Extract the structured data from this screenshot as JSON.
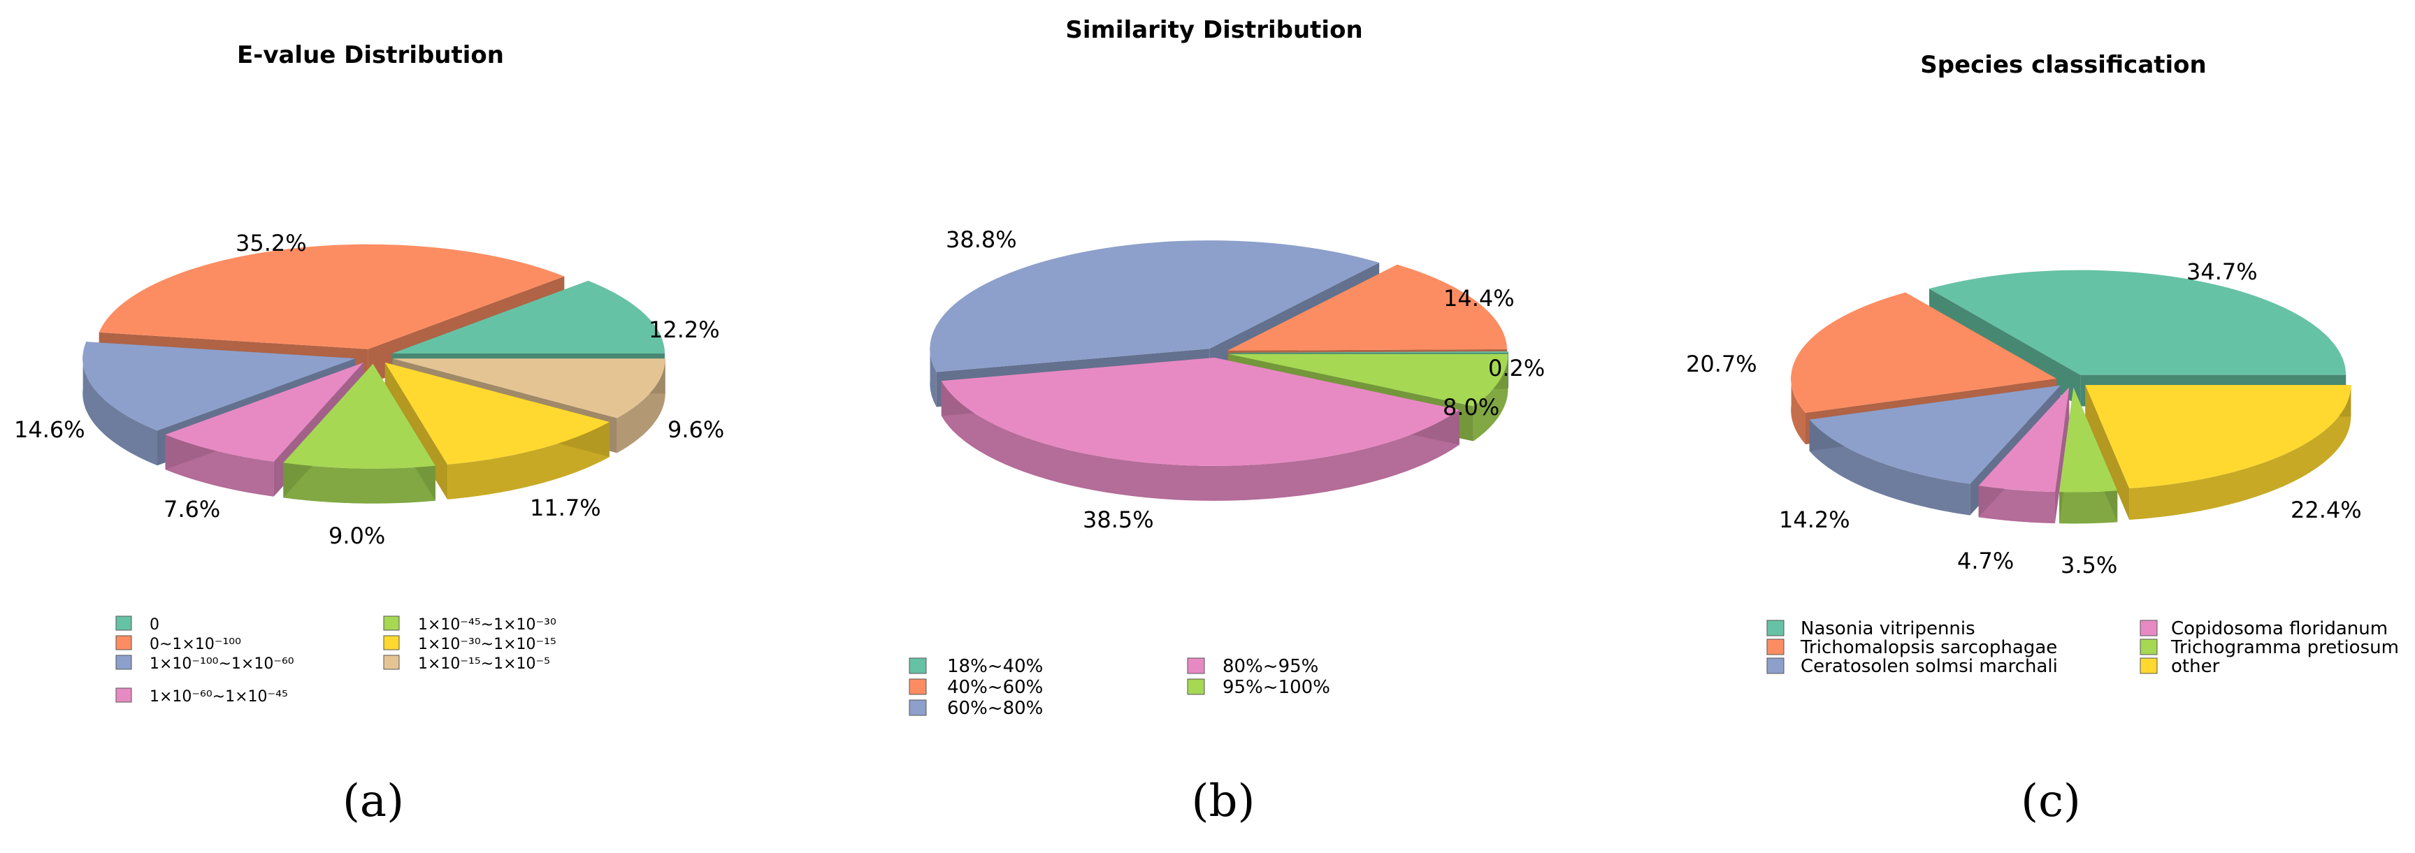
{
  "chart_data": [
    {
      "type": "pie",
      "panel_label": "(a)",
      "title": "E-value Distribution",
      "categories": [
        "0",
        "0~1×10⁻¹⁰⁰",
        "1×10⁻¹⁰⁰~1×10⁻⁶⁰",
        "1×10⁻⁶⁰~1×10⁻⁴⁵",
        "1×10⁻⁴⁵~1×10⁻³⁰",
        "1×10⁻³⁰~1×10⁻¹⁵",
        "1×10⁻¹⁵~1×10⁻⁵"
      ],
      "values": [
        12.2,
        35.2,
        14.6,
        7.6,
        9.0,
        11.7,
        9.6
      ],
      "labels": [
        "12.2%",
        "35.2%",
        "14.6%",
        "7.6%",
        "9.0%",
        "11.7%",
        "9.6%"
      ],
      "colors": [
        "#66c2a5",
        "#fc8d62",
        "#8da0cb",
        "#e78ac3",
        "#a6d854",
        "#ffd92f",
        "#e5c494"
      ],
      "legend_placement": "bottom"
    },
    {
      "type": "pie",
      "panel_label": "(b)",
      "title": "Similarity Distribution",
      "categories": [
        "18%~40%",
        "40%~60%",
        "60%~80%",
        "80%~95%",
        "95%~100%"
      ],
      "values": [
        0.2,
        14.4,
        38.8,
        38.5,
        8.0
      ],
      "labels": [
        "0.2%",
        "14.4%",
        "38.8%",
        "38.5%",
        "8.0%"
      ],
      "colors": [
        "#66c2a5",
        "#fc8d62",
        "#8da0cb",
        "#e78ac3",
        "#a6d854"
      ],
      "legend_placement": "bottom"
    },
    {
      "type": "pie",
      "panel_label": "(c)",
      "title": "Species classification",
      "categories": [
        "Nasonia vitripennis",
        "Trichomalopsis sarcophagae",
        "Ceratosolen solmsi marchali",
        "Copidosoma floridanum",
        "Trichogramma pretiosum",
        "other"
      ],
      "values": [
        34.7,
        20.7,
        14.2,
        4.7,
        3.5,
        22.4
      ],
      "labels": [
        "34.7%",
        "20.7%",
        "14.2%",
        "4.7%",
        "3.5%",
        "22.4%"
      ],
      "colors": [
        "#66c2a5",
        "#fc8d62",
        "#8da0cb",
        "#e78ac3",
        "#a6d854",
        "#ffd92f"
      ],
      "legend_placement": "bottom"
    }
  ]
}
